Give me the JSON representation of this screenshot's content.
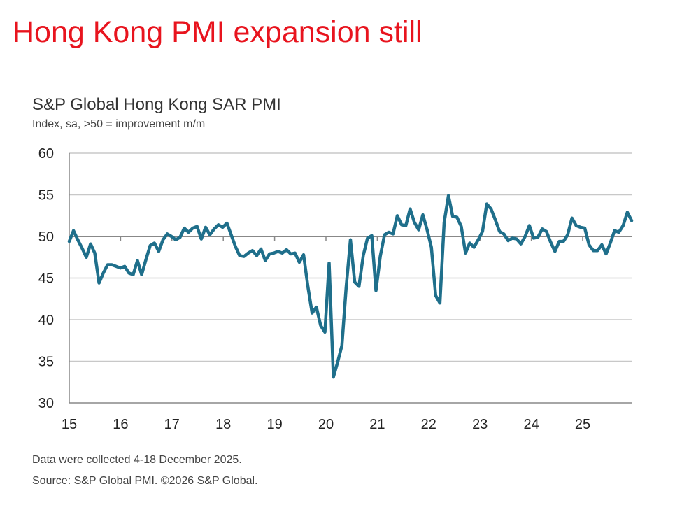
{
  "slide_title": "Hong Kong PMI expansion still",
  "chart_data": {
    "type": "line",
    "title": "S&P Global Hong Kong SAR PMI",
    "subtitle": "Index, sa, >50 = improvement m/m",
    "xlabel": "",
    "ylabel": "",
    "x_start": "2015-01",
    "x_end": "2025-12",
    "x_frequency": "monthly",
    "xlim": [
      2015,
      2026
    ],
    "ylim": [
      30,
      60
    ],
    "y_ticks": [
      "60",
      "55",
      "50",
      "45",
      "40",
      "35",
      "30"
    ],
    "x_ticks": [
      "15",
      "16",
      "17",
      "18",
      "19",
      "20",
      "21",
      "22",
      "23",
      "24",
      "25"
    ],
    "grid": true,
    "line_color": "#1f6f8b",
    "values": [
      49.4,
      50.7,
      49.6,
      48.6,
      47.5,
      49.1,
      48.0,
      44.4,
      45.6,
      46.6,
      46.6,
      46.4,
      46.2,
      46.4,
      45.6,
      45.4,
      47.1,
      45.4,
      47.2,
      48.9,
      49.2,
      48.2,
      49.6,
      50.3,
      50.0,
      49.6,
      49.9,
      51.0,
      50.5,
      51.0,
      51.2,
      49.7,
      51.1,
      50.2,
      50.9,
      51.4,
      51.1,
      51.6,
      50.2,
      48.8,
      47.7,
      47.6,
      48.0,
      48.3,
      47.7,
      48.5,
      47.1,
      47.9,
      48.0,
      48.2,
      48.0,
      48.4,
      47.9,
      48.0,
      46.9,
      47.8,
      44.0,
      40.8,
      41.5,
      39.3,
      38.5,
      46.8,
      33.1,
      34.9,
      36.9,
      43.9,
      49.6,
      44.5,
      44.0,
      47.7,
      49.8,
      50.1,
      43.5,
      47.6,
      50.2,
      50.5,
      50.3,
      52.5,
      51.4,
      51.3,
      53.3,
      51.7,
      50.8,
      52.6,
      50.8,
      48.7,
      42.9,
      42.0,
      51.7,
      54.9,
      52.4,
      52.3,
      51.2,
      48.0,
      49.2,
      48.7,
      49.6,
      50.6,
      53.9,
      53.3,
      52.0,
      50.6,
      50.3,
      49.5,
      49.8,
      49.7,
      49.1,
      50.0,
      51.3,
      49.8,
      49.9,
      50.9,
      50.6,
      49.3,
      48.2,
      49.4,
      49.4,
      50.2,
      52.2,
      51.3,
      51.1,
      51.0,
      49.0,
      48.3,
      48.3,
      49.0,
      47.9,
      49.2,
      50.7,
      50.5,
      51.3,
      52.9,
      51.9
    ]
  },
  "notes": {
    "collected": "Data were collected 4-18 December 2025.",
    "source": "Source: S&P Global PMI. ©2026 S&P Global."
  }
}
